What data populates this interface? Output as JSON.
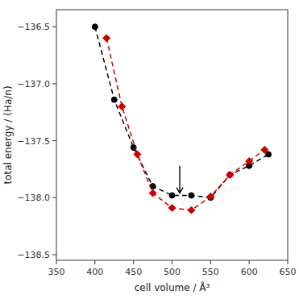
{
  "chart_data": {
    "type": "line",
    "xlabel": "cell volume / Å³",
    "ylabel": "total energy / (Ha/n)",
    "xlim": [
      350,
      650
    ],
    "ylim": [
      -138.55,
      -136.35
    ],
    "xticks": [
      350,
      400,
      450,
      500,
      550,
      600,
      650
    ],
    "yticks": [
      {
        "value": -138.5,
        "label": "−138.5"
      },
      {
        "value": -138.0,
        "label": "−138.0"
      },
      {
        "value": -137.5,
        "label": "−137.5"
      },
      {
        "value": -137.0,
        "label": "−137.0"
      },
      {
        "value": -136.5,
        "label": "−136.5"
      }
    ],
    "grid": false,
    "series": [
      {
        "color": "#000000",
        "marker": "circle",
        "line_style": "dashed",
        "x": [
          400,
          425,
          450,
          475,
          500,
          525,
          550,
          575,
          600,
          625
        ],
        "values": [
          -136.5,
          -137.14,
          -137.56,
          -137.9,
          -137.98,
          -137.98,
          -138.0,
          -137.8,
          -137.72,
          -137.62
        ]
      },
      {
        "color": "#cc0000",
        "marker": "diamond",
        "line_style": "dashed",
        "x": [
          415,
          435,
          455,
          475,
          500,
          525,
          550,
          575,
          600,
          620
        ],
        "values": [
          -136.6,
          -137.2,
          -137.62,
          -137.96,
          -138.09,
          -138.11,
          -137.99,
          -137.8,
          -137.68,
          -137.58
        ]
      }
    ],
    "arrow": {
      "x": 510,
      "y_start": -137.72,
      "y_end": -137.96
    }
  }
}
